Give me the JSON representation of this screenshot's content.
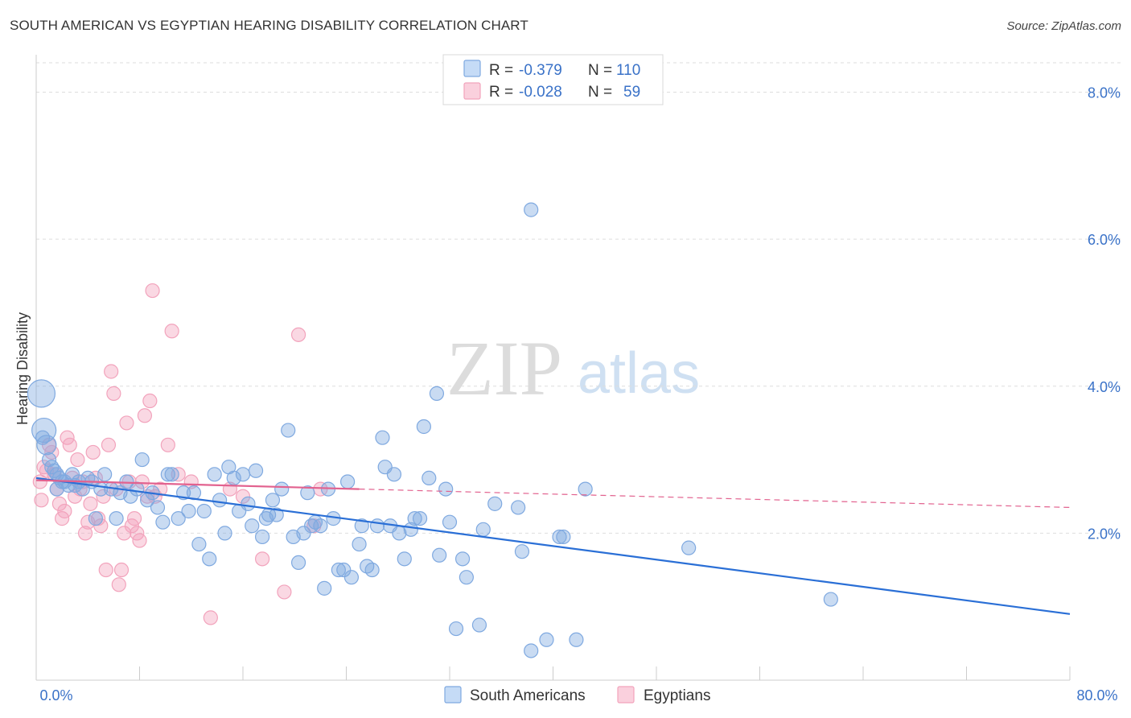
{
  "header": {
    "title": "SOUTH AMERICAN VS EGYPTIAN HEARING DISABILITY CORRELATION CHART",
    "source": "Source: ZipAtlas.com"
  },
  "watermark": {
    "zip": "ZIP",
    "atlas": "atlas"
  },
  "stats_legend": {
    "rows": [
      {
        "r_label": "R =",
        "r_value": "-0.379",
        "n_label": "N =",
        "n_value": "110"
      },
      {
        "r_label": "R =",
        "r_value": "-0.028",
        "n_label": "N =",
        "n_value": "59"
      }
    ]
  },
  "bottom_legend": {
    "items": [
      "South Americans",
      "Egyptians"
    ]
  },
  "colors": {
    "south_americans": "#7fa9e0",
    "egyptians": "#f2a3bc",
    "south_americans_line": "#2a6fd6",
    "egyptians_line": "#e2628f",
    "value_text": "#3a72c8"
  },
  "chart_data": {
    "type": "scatter",
    "title": "SOUTH AMERICAN VS EGYPTIAN HEARING DISABILITY CORRELATION CHART",
    "xlabel": "",
    "ylabel": "Hearing Disability",
    "xlim": [
      0,
      80
    ],
    "ylim": [
      0,
      8.4
    ],
    "x_tick_labels": [
      "0.0%",
      "80.0%"
    ],
    "y_ticks": [
      2,
      4,
      6,
      8
    ],
    "y_tick_labels": [
      "2.0%",
      "4.0%",
      "6.0%",
      "8.0%"
    ],
    "grid": "horizontal dashed",
    "series": [
      {
        "name": "South Americans",
        "r": -0.379,
        "n": 110,
        "trend": {
          "x": [
            0,
            80
          ],
          "y": [
            2.75,
            0.9
          ],
          "style": "solid"
        },
        "points": [
          [
            0.4,
            3.9
          ],
          [
            0.6,
            3.4
          ],
          [
            0.8,
            3.2
          ],
          [
            1,
            3.0
          ],
          [
            1.2,
            2.9
          ],
          [
            1.4,
            2.85
          ],
          [
            1.6,
            2.8
          ],
          [
            1.8,
            2.75
          ],
          [
            2,
            2.7
          ],
          [
            2.2,
            2.7
          ],
          [
            2.5,
            2.65
          ],
          [
            2.8,
            2.8
          ],
          [
            3,
            2.65
          ],
          [
            3.3,
            2.7
          ],
          [
            3.6,
            2.6
          ],
          [
            4,
            2.75
          ],
          [
            4.3,
            2.7
          ],
          [
            4.6,
            2.2
          ],
          [
            5,
            2.6
          ],
          [
            5.3,
            2.8
          ],
          [
            5.8,
            2.6
          ],
          [
            6.2,
            2.2
          ],
          [
            6.5,
            2.55
          ],
          [
            7,
            2.7
          ],
          [
            7.3,
            2.5
          ],
          [
            7.8,
            2.6
          ],
          [
            8.2,
            3.0
          ],
          [
            8.6,
            2.45
          ],
          [
            9,
            2.55
          ],
          [
            9.4,
            2.35
          ],
          [
            9.8,
            2.15
          ],
          [
            10.2,
            2.8
          ],
          [
            10.5,
            2.8
          ],
          [
            11,
            2.2
          ],
          [
            11.4,
            2.55
          ],
          [
            11.8,
            2.3
          ],
          [
            12.2,
            2.55
          ],
          [
            12.6,
            1.85
          ],
          [
            13,
            2.3
          ],
          [
            13.4,
            1.65
          ],
          [
            13.8,
            2.8
          ],
          [
            14.2,
            2.45
          ],
          [
            14.6,
            2.0
          ],
          [
            14.9,
            2.9
          ],
          [
            15.3,
            2.75
          ],
          [
            15.7,
            2.3
          ],
          [
            16,
            2.8
          ],
          [
            16.4,
            2.4
          ],
          [
            16.7,
            2.1
          ],
          [
            17,
            2.85
          ],
          [
            17.5,
            1.95
          ],
          [
            17.8,
            2.2
          ],
          [
            18,
            2.25
          ],
          [
            18.3,
            2.45
          ],
          [
            18.6,
            2.25
          ],
          [
            19,
            2.6
          ],
          [
            19.5,
            3.4
          ],
          [
            19.9,
            1.95
          ],
          [
            20.3,
            1.6
          ],
          [
            20.7,
            2.0
          ],
          [
            21,
            2.55
          ],
          [
            21.3,
            2.1
          ],
          [
            21.6,
            2.15
          ],
          [
            22,
            2.1
          ],
          [
            22.3,
            1.25
          ],
          [
            22.6,
            2.6
          ],
          [
            23,
            2.2
          ],
          [
            23.4,
            1.5
          ],
          [
            23.8,
            1.5
          ],
          [
            24.1,
            2.7
          ],
          [
            24.4,
            1.4
          ],
          [
            25,
            1.85
          ],
          [
            25.2,
            2.1
          ],
          [
            25.6,
            1.55
          ],
          [
            26,
            1.5
          ],
          [
            26.4,
            2.1
          ],
          [
            26.8,
            3.3
          ],
          [
            27,
            2.9
          ],
          [
            27.4,
            2.1
          ],
          [
            27.7,
            2.8
          ],
          [
            28.1,
            2.0
          ],
          [
            28.5,
            1.65
          ],
          [
            29,
            2.05
          ],
          [
            29.3,
            2.2
          ],
          [
            29.7,
            2.2
          ],
          [
            30,
            3.45
          ],
          [
            30.4,
            2.75
          ],
          [
            31,
            3.9
          ],
          [
            31.2,
            1.7
          ],
          [
            31.7,
            2.6
          ],
          [
            32,
            2.15
          ],
          [
            32.5,
            0.7
          ],
          [
            33,
            1.65
          ],
          [
            33.3,
            1.4
          ],
          [
            34.3,
            0.75
          ],
          [
            34.6,
            2.05
          ],
          [
            35.5,
            2.4
          ],
          [
            37.3,
            2.35
          ],
          [
            37.6,
            1.75
          ],
          [
            38.3,
            0.4
          ],
          [
            38.3,
            6.4
          ],
          [
            39.5,
            0.55
          ],
          [
            40.5,
            1.95
          ],
          [
            40.8,
            1.95
          ],
          [
            41.8,
            0.55
          ],
          [
            42.5,
            2.6
          ],
          [
            50.5,
            1.8
          ],
          [
            61.5,
            1.1
          ],
          [
            0.5,
            3.3
          ],
          [
            1.6,
            2.6
          ]
        ]
      },
      {
        "name": "Egyptians",
        "r": -0.028,
        "n": 59,
        "trend": {
          "x": [
            0,
            25,
            80
          ],
          "y": [
            2.72,
            2.6,
            2.35
          ],
          "style": "solid to x=25, dashed after"
        },
        "points": [
          [
            0.4,
            2.45
          ],
          [
            0.6,
            2.9
          ],
          [
            0.8,
            2.85
          ],
          [
            1,
            3.2
          ],
          [
            1.2,
            3.1
          ],
          [
            1.4,
            2.8
          ],
          [
            1.6,
            2.6
          ],
          [
            1.8,
            2.4
          ],
          [
            2,
            2.2
          ],
          [
            2.2,
            2.3
          ],
          [
            2.4,
            3.3
          ],
          [
            2.6,
            3.2
          ],
          [
            2.8,
            2.75
          ],
          [
            3,
            2.5
          ],
          [
            3.2,
            3.0
          ],
          [
            3.4,
            2.6
          ],
          [
            3.6,
            2.7
          ],
          [
            3.8,
            2.0
          ],
          [
            4,
            2.15
          ],
          [
            4.2,
            2.4
          ],
          [
            4.4,
            3.1
          ],
          [
            4.6,
            2.75
          ],
          [
            4.8,
            2.2
          ],
          [
            5.0,
            2.1
          ],
          [
            5.2,
            2.5
          ],
          [
            5.4,
            1.5
          ],
          [
            5.6,
            3.2
          ],
          [
            5.8,
            4.2
          ],
          [
            6.0,
            3.9
          ],
          [
            6.2,
            2.6
          ],
          [
            6.4,
            1.3
          ],
          [
            6.6,
            1.5
          ],
          [
            6.8,
            2.0
          ],
          [
            7.0,
            3.5
          ],
          [
            7.2,
            2.7
          ],
          [
            7.4,
            2.1
          ],
          [
            7.6,
            2.2
          ],
          [
            7.8,
            2.0
          ],
          [
            8.0,
            1.9
          ],
          [
            8.2,
            2.7
          ],
          [
            8.4,
            3.6
          ],
          [
            8.6,
            2.5
          ],
          [
            8.8,
            3.8
          ],
          [
            9.0,
            5.3
          ],
          [
            9.2,
            2.5
          ],
          [
            9.6,
            2.6
          ],
          [
            10.2,
            3.2
          ],
          [
            10.5,
            4.75
          ],
          [
            11,
            2.8
          ],
          [
            12,
            2.7
          ],
          [
            13.5,
            0.85
          ],
          [
            15,
            2.6
          ],
          [
            16,
            2.5
          ],
          [
            17.5,
            1.65
          ],
          [
            19.2,
            1.2
          ],
          [
            20.3,
            4.7
          ],
          [
            21.5,
            2.1
          ],
          [
            22,
            2.6
          ],
          [
            0.3,
            2.7
          ]
        ]
      }
    ]
  }
}
